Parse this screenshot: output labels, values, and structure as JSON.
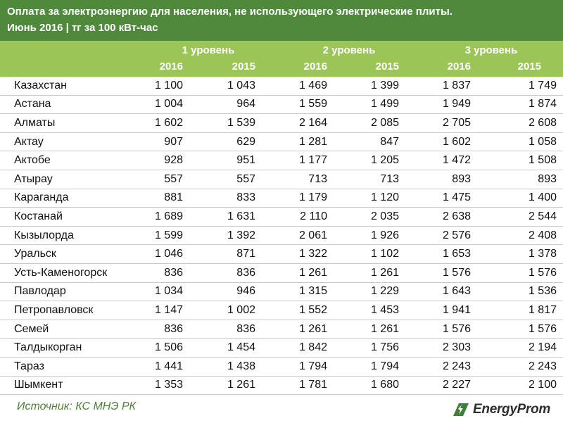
{
  "title": "Оплата за электроэнергию для населения, не использующего электрические плиты.",
  "subtitle": "Июнь 2016 | тг за 100 кВт-час",
  "levels": [
    "1 уровень",
    "2 уровень",
    "3 уровень"
  ],
  "years": [
    "2016",
    "2015",
    "2016",
    "2015",
    "2016",
    "2015"
  ],
  "rows": [
    {
      "city": "Казахстан",
      "values": [
        "1 100",
        "1 043",
        "1 469",
        "1 399",
        "1 837",
        "1 749"
      ]
    },
    {
      "city": "Астана",
      "values": [
        "1 004",
        "964",
        "1 559",
        "1 499",
        "1 949",
        "1 874"
      ]
    },
    {
      "city": "Алматы",
      "values": [
        "1 602",
        "1 539",
        "2 164",
        "2 085",
        "2 705",
        "2 608"
      ]
    },
    {
      "city": "Актау",
      "values": [
        "907",
        "629",
        "1 281",
        "847",
        "1 602",
        "1 058"
      ]
    },
    {
      "city": "Актобе",
      "values": [
        "928",
        "951",
        "1 177",
        "1 205",
        "1 472",
        "1 508"
      ]
    },
    {
      "city": "Атырау",
      "values": [
        "557",
        "557",
        "713",
        "713",
        "893",
        "893"
      ]
    },
    {
      "city": "Караганда",
      "values": [
        "881",
        "833",
        "1 179",
        "1 120",
        "1 475",
        "1 400"
      ]
    },
    {
      "city": "Костанай",
      "values": [
        "1 689",
        "1 631",
        "2 110",
        "2 035",
        "2 638",
        "2 544"
      ]
    },
    {
      "city": "Кызылорда",
      "values": [
        "1 599",
        "1 392",
        "2 061",
        "1 926",
        "2 576",
        "2 408"
      ]
    },
    {
      "city": "Уральск",
      "values": [
        "1 046",
        "871",
        "1 322",
        "1 102",
        "1 653",
        "1 378"
      ]
    },
    {
      "city": "Усть-Каменогорск",
      "values": [
        "836",
        "836",
        "1 261",
        "1 261",
        "1 576",
        "1 576"
      ]
    },
    {
      "city": "Павлодар",
      "values": [
        "1 034",
        "946",
        "1 315",
        "1 229",
        "1 643",
        "1 536"
      ]
    },
    {
      "city": "Петропавловск",
      "values": [
        "1 147",
        "1 002",
        "1 552",
        "1 453",
        "1 941",
        "1 817"
      ]
    },
    {
      "city": "Семей",
      "values": [
        "836",
        "836",
        "1 261",
        "1 261",
        "1 576",
        "1 576"
      ]
    },
    {
      "city": "Талдыкорган",
      "values": [
        "1 506",
        "1 454",
        "1 842",
        "1 756",
        "2 303",
        "2 194"
      ]
    },
    {
      "city": "Тараз",
      "values": [
        "1 441",
        "1 438",
        "1 794",
        "1 794",
        "2 243",
        "2 243"
      ]
    },
    {
      "city": "Шымкент",
      "values": [
        "1 353",
        "1 261",
        "1 781",
        "1 680",
        "2 227",
        "2 100"
      ]
    }
  ],
  "source": "Источник: КС МНЭ РК",
  "logo_text": "EnergyProm",
  "colors": {
    "header_bg": "#4f8a3c",
    "subheader_bg": "#9cc558",
    "source_text": "#4f7f3a"
  }
}
